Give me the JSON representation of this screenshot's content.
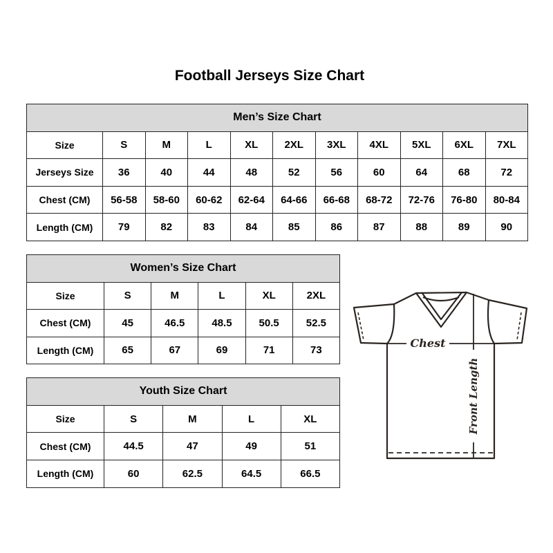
{
  "title": "Football Jerseys Size Chart",
  "men": {
    "heading": "Men’s Size Chart",
    "rows": [
      {
        "label": "Size",
        "values": [
          "S",
          "M",
          "L",
          "XL",
          "2XL",
          "3XL",
          "4XL",
          "5XL",
          "6XL",
          "7XL"
        ]
      },
      {
        "label": "Jerseys Size",
        "values": [
          "36",
          "40",
          "44",
          "48",
          "52",
          "56",
          "60",
          "64",
          "68",
          "72"
        ]
      },
      {
        "label": "Chest (CM)",
        "values": [
          "56-58",
          "58-60",
          "60-62",
          "62-64",
          "64-66",
          "66-68",
          "68-72",
          "72-76",
          "76-80",
          "80-84"
        ]
      },
      {
        "label": "Length (CM)",
        "values": [
          "79",
          "82",
          "83",
          "84",
          "85",
          "86",
          "87",
          "88",
          "89",
          "90"
        ]
      }
    ]
  },
  "women": {
    "heading": "Women’s Size Chart",
    "rows": [
      {
        "label": "Size",
        "values": [
          "S",
          "M",
          "L",
          "XL",
          "2XL"
        ]
      },
      {
        "label": "Chest (CM)",
        "values": [
          "45",
          "46.5",
          "48.5",
          "50.5",
          "52.5"
        ]
      },
      {
        "label": "Length (CM)",
        "values": [
          "65",
          "67",
          "69",
          "71",
          "73"
        ]
      }
    ]
  },
  "youth": {
    "heading": "Youth Size Chart",
    "rows": [
      {
        "label": "Size",
        "values": [
          "S",
          "M",
          "L",
          "XL"
        ]
      },
      {
        "label": "Chest (CM)",
        "values": [
          "44.5",
          "47",
          "49",
          "51"
        ]
      },
      {
        "label": "Length (CM)",
        "values": [
          "60",
          "62.5",
          "64.5",
          "66.5"
        ]
      }
    ]
  },
  "diagram": {
    "chest_label": "Chest",
    "length_label": "Front Length"
  },
  "colors": {
    "header_bg": "#d9d9d9",
    "border": "#222222"
  }
}
